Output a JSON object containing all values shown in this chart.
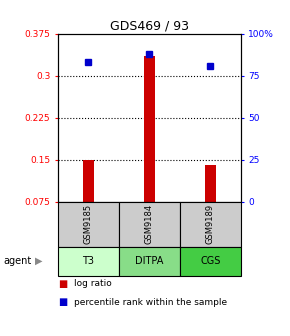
{
  "title": "GDS469 / 93",
  "samples": [
    "GSM9185",
    "GSM9184",
    "GSM9189"
  ],
  "agents": [
    "T3",
    "DITPA",
    "CGS"
  ],
  "log_ratio_values": [
    0.15,
    0.335,
    0.14
  ],
  "percentile_rank": [
    83,
    88,
    81
  ],
  "ylim_left": [
    0.075,
    0.375
  ],
  "ylim_right": [
    0,
    100
  ],
  "yticks_left": [
    0.075,
    0.15,
    0.225,
    0.3,
    0.375
  ],
  "ytick_labels_left": [
    "0.075",
    "0.15",
    "0.225",
    "0.3",
    "0.375"
  ],
  "yticks_right": [
    0,
    25,
    50,
    75,
    100
  ],
  "ytick_labels_right": [
    "0",
    "25",
    "50",
    "75",
    "100%"
  ],
  "bar_color": "#cc0000",
  "dot_color": "#0000cc",
  "agent_colors": [
    "#ccffcc",
    "#88dd88",
    "#44cc44"
  ],
  "sample_box_color": "#cccccc",
  "legend_items": [
    "log ratio",
    "percentile rank within the sample"
  ],
  "bar_width": 0.18,
  "bar_bottom": 0.075,
  "x_positions": [
    1,
    2,
    3
  ],
  "xlim": [
    0.5,
    3.5
  ]
}
